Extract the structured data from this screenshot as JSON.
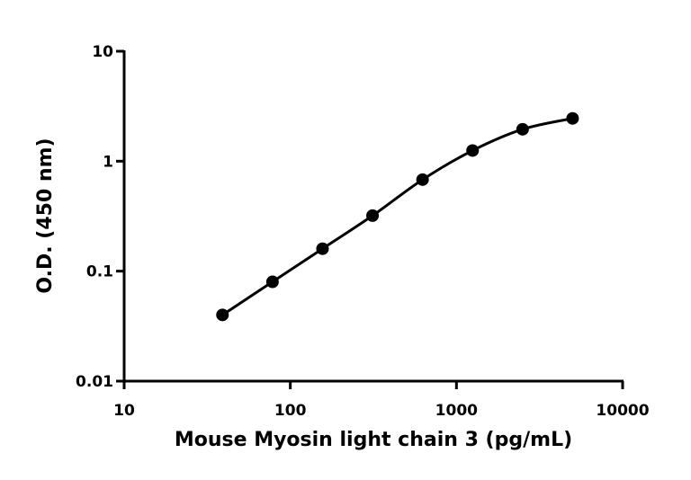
{
  "chart_data": {
    "type": "line",
    "x_label": "Mouse Myosin light chain 3 (pg/mL)",
    "y_label": "O.D. (450 nm)",
    "x": [
      39.06,
      78.125,
      156.25,
      312.5,
      625,
      1250,
      2500,
      5000
    ],
    "series": [
      {
        "color": "#000000",
        "values": [
          0.04,
          0.08,
          0.16,
          0.32,
          0.68,
          1.25,
          1.95,
          2.45
        ]
      }
    ],
    "xlim": [
      10,
      10000
    ],
    "xticks": [
      10,
      100,
      1000,
      10000
    ],
    "ylim": [
      0.01,
      10
    ],
    "yticks": [
      0.01,
      0.1,
      1,
      10
    ],
    "xscale": "log",
    "yscale": "log",
    "markers": true
  }
}
